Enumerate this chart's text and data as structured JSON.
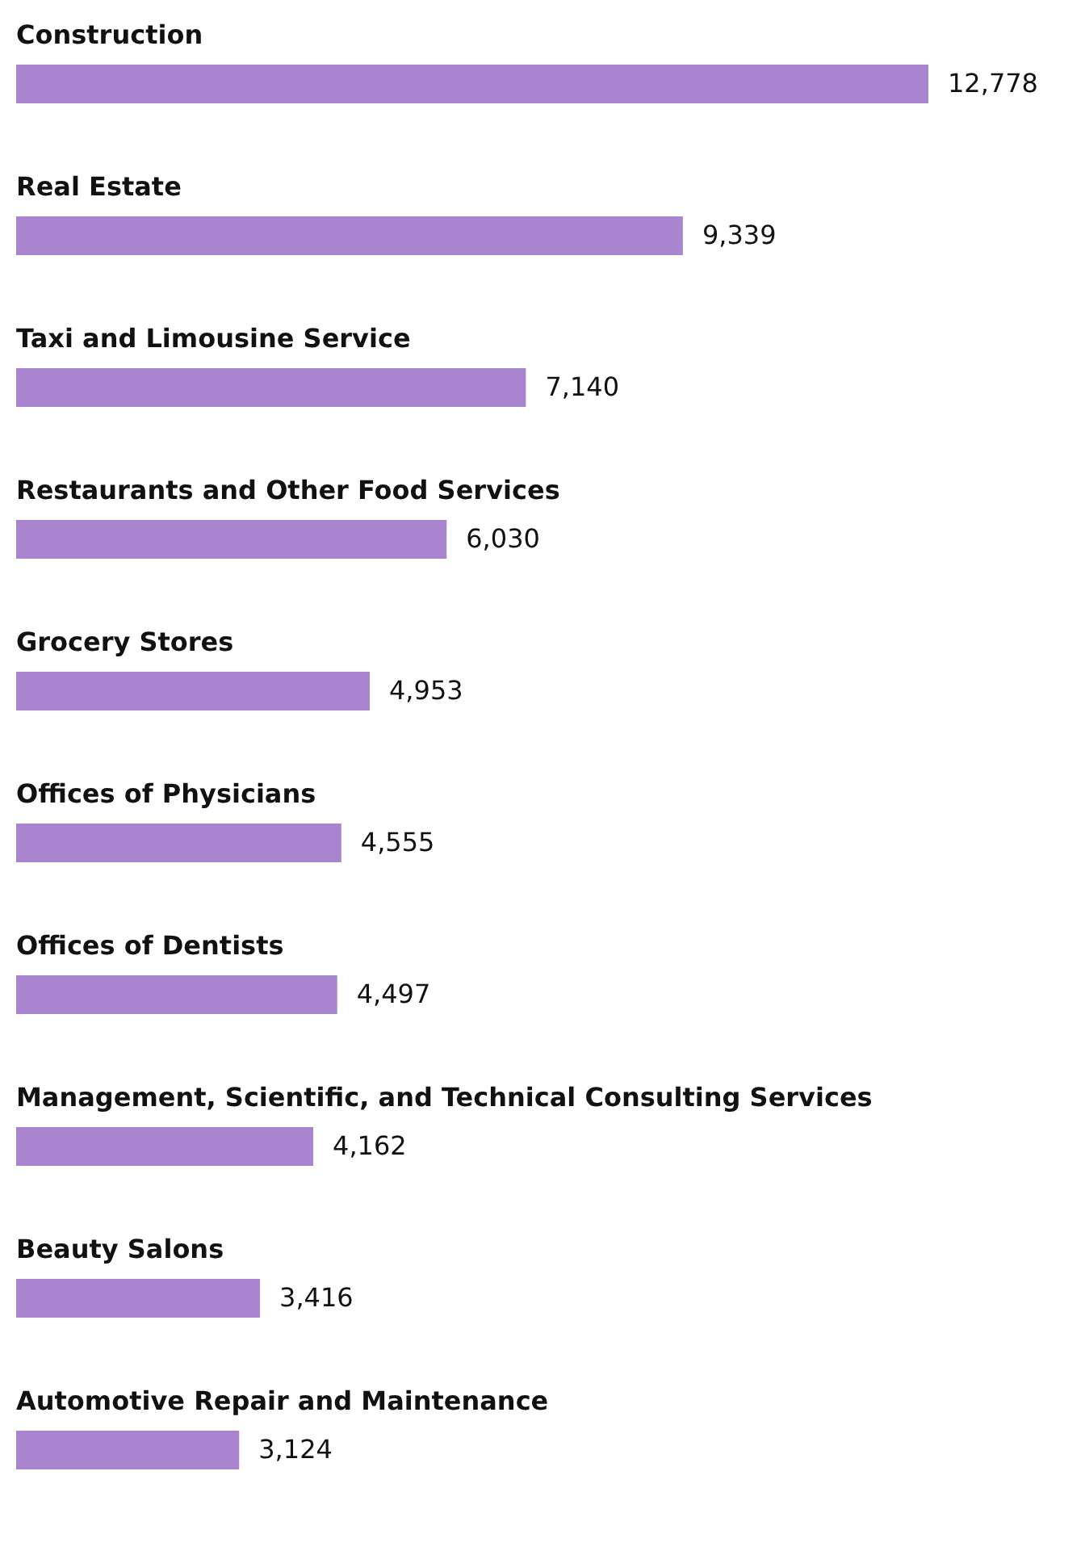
{
  "chart_data": {
    "type": "bar",
    "orientation": "horizontal",
    "value_labels": [
      "12,778",
      "9,339",
      "7,140",
      "6,030",
      "4,953",
      "4,555",
      "4,497",
      "4,162",
      "3,416",
      "3,124"
    ],
    "color": "#a985d0",
    "categories": [
      "Construction",
      "Real Estate",
      "Taxi and Limousine Service",
      "Restaurants and Other Food Services",
      "Grocery Stores",
      "Offices of Physicians",
      "Offices of Dentists",
      "Management, Scientific, and Technical Consulting Services",
      "Beauty Salons",
      "Automotive Repair and Maintenance"
    ],
    "values": [
      12778,
      9339,
      7140,
      6030,
      4953,
      4555,
      4497,
      4162,
      3416,
      3124
    ]
  }
}
